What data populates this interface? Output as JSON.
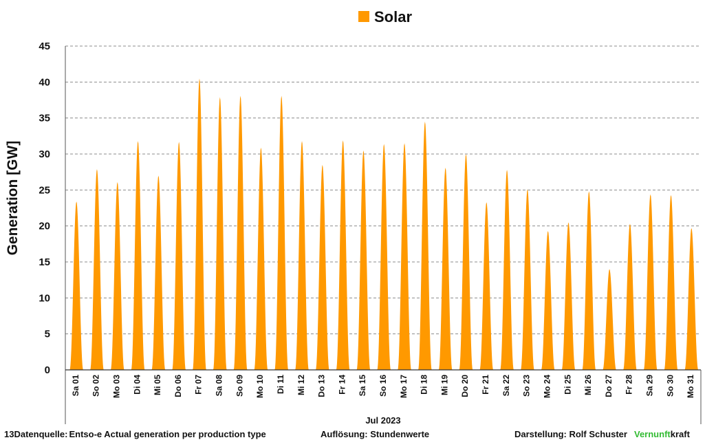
{
  "chart_data": {
    "type": "area",
    "legend": {
      "position": "top-center",
      "entries": [
        "Solar"
      ]
    },
    "xlabel": "Jul 2023",
    "ylabel": "Generation  [GW]",
    "ylim": [
      0,
      45
    ],
    "yticks": [
      0,
      5,
      10,
      15,
      20,
      25,
      30,
      35,
      40,
      45
    ],
    "grid": {
      "horizontal": true,
      "style": "dashed"
    },
    "categories": [
      "Sa 01",
      "So 02",
      "Mo 03",
      "Di 04",
      "Mi 05",
      "Do 06",
      "Fr 07",
      "Sa 08",
      "So 09",
      "Mo 10",
      "Di 11",
      "Mi 12",
      "Do 13",
      "Fr 14",
      "Sa 15",
      "So 16",
      "Mo 17",
      "Di 18",
      "Mi 19",
      "Do 20",
      "Fr 21",
      "Sa 22",
      "So 23",
      "Mo 24",
      "Di 25",
      "Mi 26",
      "Do 27",
      "Fr 28",
      "Sa 29",
      "So 30",
      "Mo 31"
    ],
    "series": [
      {
        "name": "Solar",
        "color": "#FF9900",
        "resolution": "hourly",
        "daily_peak": [
          23.4,
          27.9,
          26.1,
          31.8,
          27.0,
          31.7,
          40.5,
          37.9,
          38.1,
          30.9,
          38.1,
          31.8,
          28.5,
          31.9,
          30.5,
          31.4,
          31.5,
          34.5,
          28.1,
          30.0,
          23.3,
          27.8,
          25.1,
          19.3,
          20.5,
          24.8,
          14.0,
          20.3,
          24.4,
          24.3,
          19.7
        ]
      }
    ]
  },
  "footer": {
    "source_label": "13Datenquelle:",
    "source_value": "Entso-e  Actual generation per production type",
    "resolution_text": "Auflösung: Stundenwerte",
    "credit_text": "Darstellung:  Rolf Schuster",
    "brand_part1": "Vernunft",
    "brand_part2": "kraft",
    "brand_color": "#33BB33"
  }
}
